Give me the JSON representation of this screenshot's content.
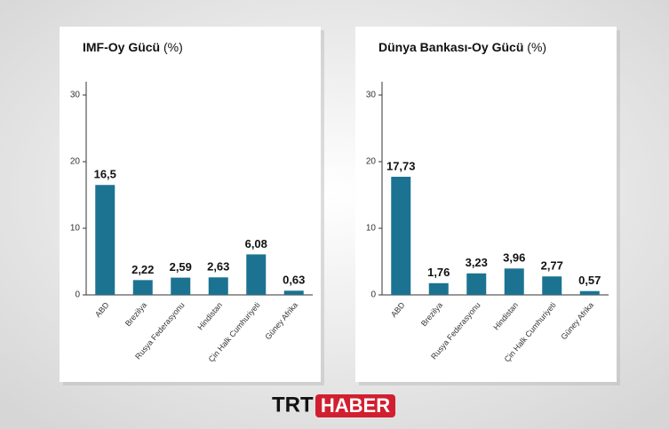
{
  "chart_data": [
    {
      "type": "bar",
      "title": "IMF-Oy Gücü",
      "title_unit": "(%)",
      "categories": [
        "ABD",
        "Brezilya",
        "Rusya Federasyonu",
        "Hindistan",
        "Çin Halk Cumhuriyeti",
        "Güney Afrika"
      ],
      "values": [
        16.5,
        2.22,
        2.59,
        2.63,
        6.08,
        0.63
      ],
      "value_labels": [
        "16,5",
        "2,22",
        "2,59",
        "2,63",
        "6,08",
        "0,63"
      ],
      "color": "#1b7391",
      "ylim": [
        0,
        32
      ],
      "yticks": [
        0,
        10,
        20,
        30
      ]
    },
    {
      "type": "bar",
      "title": "Dünya Bankası-Oy Gücü",
      "title_unit": "(%)",
      "categories": [
        "ABD",
        "Brezilya",
        "Rusya Federasyonu",
        "Hindistan",
        "Çin Halk Cumhuriyeti",
        "Güney Afrika"
      ],
      "values": [
        17.73,
        1.76,
        3.23,
        3.96,
        2.77,
        0.57
      ],
      "value_labels": [
        "17,73",
        "1,76",
        "3,23",
        "3,96",
        "2,77",
        "0,57"
      ],
      "color": "#1b7391",
      "ylim": [
        0,
        32
      ],
      "yticks": [
        0,
        10,
        20,
        30
      ]
    }
  ],
  "footer": {
    "logo_left": "TRT",
    "logo_right": "HABER"
  }
}
